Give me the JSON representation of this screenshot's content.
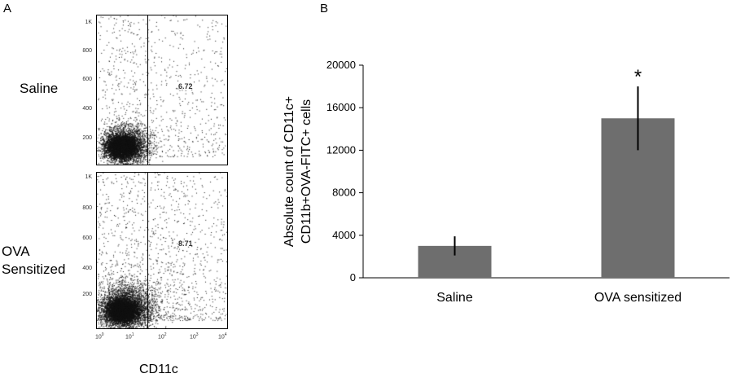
{
  "panel_a": {
    "letter": "A",
    "rows": [
      {
        "label_lines": [
          "Saline"
        ],
        "gate_percent": "6.72"
      },
      {
        "label_lines": [
          "OVA",
          "Sensitized"
        ],
        "gate_percent": "8.71"
      }
    ],
    "y_ticks": [
      "1K",
      "800",
      "600",
      "400",
      "200"
    ],
    "x_ticks": [
      {
        "base": "10",
        "exp": "0"
      },
      {
        "base": "10",
        "exp": "1"
      },
      {
        "base": "10",
        "exp": "2"
      },
      {
        "base": "10",
        "exp": "3"
      },
      {
        "base": "10",
        "exp": "4"
      }
    ],
    "x_axis_label": "CD11c"
  },
  "panel_b": {
    "letter": "B"
  },
  "chart_data": {
    "type": "bar",
    "categories": [
      "Saline",
      "OVA sensitized"
    ],
    "values": [
      3000,
      15000
    ],
    "error": [
      900,
      3000
    ],
    "annotations": [
      "",
      "*"
    ],
    "ylabel": "Absolute count of CD11c+ CD11b+OVA-FITC+ cells",
    "ylabel_lines": [
      "Absolute count of CD11c+",
      "CD11b+OVA-FITC+ cells"
    ],
    "ylim": [
      0,
      20000
    ],
    "yticks": [
      0,
      4000,
      8000,
      12000,
      16000,
      20000
    ],
    "bar_color": "#6e6e6e",
    "grid": false
  }
}
